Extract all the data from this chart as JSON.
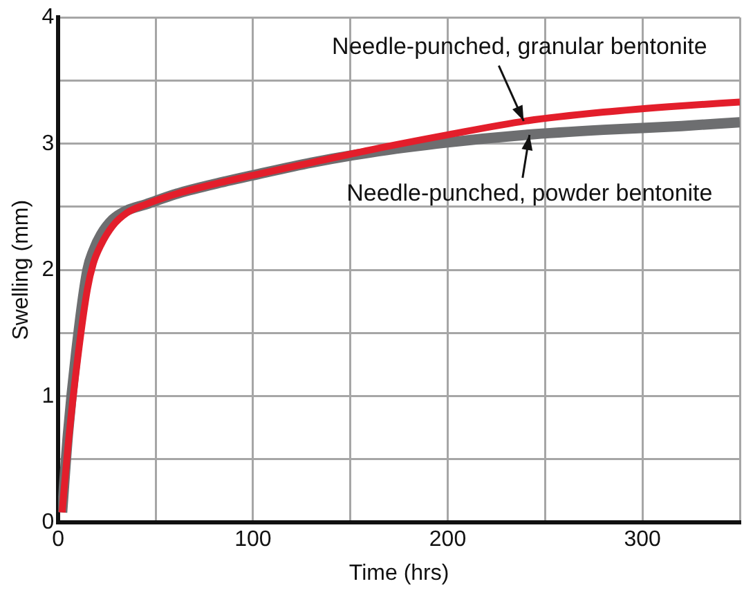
{
  "chart_data": {
    "type": "line",
    "xlabel": "Time (hrs)",
    "ylabel": "Swelling (mm)",
    "grid": true,
    "legend": false,
    "marker": "none",
    "line_style": "solid",
    "xlim": [
      0,
      350
    ],
    "xticks": [
      0,
      {
        "value": 50,
        "label": null
      },
      100,
      {
        "value": 150,
        "label": null
      },
      200,
      {
        "value": 250,
        "label": null
      },
      300,
      {
        "value": 350,
        "label": null
      }
    ],
    "ylim": [
      0,
      4
    ],
    "yticks": [
      0,
      {
        "value": 0.5,
        "label": null
      },
      1,
      {
        "value": 1.5,
        "label": null
      },
      2,
      {
        "value": 2.5,
        "label": null
      },
      3,
      {
        "value": 3.5,
        "label": null
      },
      4
    ],
    "series": [
      {
        "color": "#6d6e70",
        "x": [
          2,
          5,
          10,
          15,
          18,
          22,
          28,
          35,
          45,
          60,
          80,
          100,
          130,
          160,
          200,
          240,
          280,
          320,
          350
        ],
        "values": [
          0.08,
          0.7,
          1.45,
          2.0,
          2.15,
          2.28,
          2.4,
          2.47,
          2.52,
          2.6,
          2.68,
          2.75,
          2.85,
          2.93,
          3.01,
          3.07,
          3.11,
          3.14,
          3.17
        ]
      },
      {
        "color": "#e31e2b",
        "x": [
          2,
          5,
          10,
          15,
          18,
          22,
          28,
          35,
          45,
          60,
          80,
          100,
          130,
          160,
          200,
          240,
          280,
          320,
          350
        ],
        "values": [
          0.08,
          0.6,
          1.3,
          1.85,
          2.05,
          2.2,
          2.35,
          2.45,
          2.52,
          2.6,
          2.68,
          2.75,
          2.85,
          2.95,
          3.07,
          3.18,
          3.25,
          3.3,
          3.33
        ]
      }
    ],
    "annotations": [
      {
        "text": "Needle-punched, granular bentonite",
        "x": 239,
        "y": 3.18
      },
      {
        "text": "Needle-punched, powder bentonite",
        "x": 242,
        "y": 3.07
      }
    ]
  }
}
